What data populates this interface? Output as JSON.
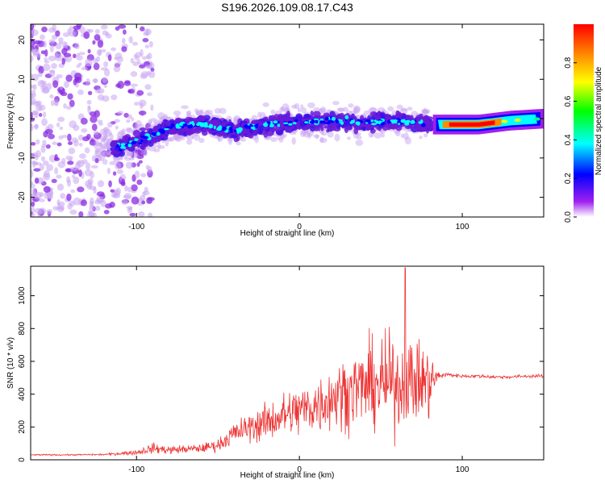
{
  "title": "S196.2026.109.08.17.C43",
  "chart_data": [
    {
      "type": "heatmap",
      "xlabel": "Height of straight line (km)",
      "ylabel": "Frequency (Hz)",
      "xlim": [
        -165,
        150
      ],
      "ylim": [
        -25,
        24
      ],
      "xticks": [
        -100,
        0,
        100
      ],
      "yticks": [
        -20,
        -10,
        0,
        10,
        20
      ],
      "colorbar": {
        "label": "Normalized spectral amplitude",
        "range": [
          0,
          1
        ],
        "ticks": [
          "0.0",
          "0.2",
          "0.4",
          "0.6",
          "0.8"
        ],
        "colors": [
          "#ffffff",
          "#a020f0",
          "#0000ff",
          "#00ffff",
          "#00ff00",
          "#ffff00",
          "#ff8c00",
          "#ff0000"
        ]
      },
      "ridge": {
        "x": [
          -110,
          -90,
          -80,
          -60,
          -40,
          -20,
          0,
          20,
          40,
          60,
          80,
          90,
          110,
          130,
          150
        ],
        "freq": [
          -7,
          -4.5,
          -2,
          -1.5,
          -3,
          -1.5,
          -1,
          -0.5,
          -1,
          -0.5,
          -1.5,
          -1.5,
          -1.5,
          -0.5,
          0
        ]
      }
    },
    {
      "type": "line",
      "xlabel": "Height of straight line (km)",
      "ylabel": "SNR (10 * v/v)",
      "xlim": [
        -165,
        150
      ],
      "ylim": [
        0,
        1180
      ],
      "xticks": [
        -100,
        0,
        100
      ],
      "yticks": [
        0,
        200,
        400,
        600,
        800,
        1000
      ],
      "color": "#ee3333",
      "series": [
        {
          "name": "SNR",
          "x": [
            -165,
            -140,
            -120,
            -100,
            -90,
            -80,
            -70,
            -60,
            -50,
            -40,
            -30,
            -20,
            -10,
            0,
            10,
            20,
            30,
            40,
            50,
            60,
            70,
            80,
            85,
            90,
            100,
            110,
            120,
            130,
            140,
            150
          ],
          "mean": [
            30,
            30,
            32,
            45,
            70,
            60,
            65,
            70,
            90,
            160,
            200,
            230,
            270,
            300,
            330,
            380,
            420,
            450,
            460,
            470,
            480,
            470,
            510,
            520,
            510,
            510,
            505,
            505,
            510,
            510
          ],
          "amplitude": [
            8,
            8,
            10,
            30,
            60,
            50,
            45,
            50,
            70,
            130,
            170,
            220,
            260,
            300,
            330,
            380,
            420,
            480,
            520,
            560,
            500,
            420,
            60,
            25,
            20,
            20,
            20,
            20,
            20,
            20
          ],
          "peak": {
            "x": 65,
            "y": 1170
          }
        }
      ]
    }
  ]
}
